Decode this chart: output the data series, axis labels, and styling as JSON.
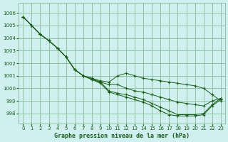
{
  "title": "Graphe pression niveau de la mer (hPa)",
  "bg_color": "#cff0ee",
  "grid_color": "#88bb99",
  "line_color": "#1a5e1a",
  "marker": "+",
  "x_ticks": [
    0,
    1,
    2,
    3,
    4,
    5,
    6,
    7,
    8,
    9,
    10,
    11,
    12,
    13,
    14,
    15,
    16,
    17,
    18,
    19,
    20,
    21,
    22,
    23
  ],
  "ylim": [
    997.2,
    1006.8
  ],
  "yticks": [
    998,
    999,
    1000,
    1001,
    1002,
    1003,
    1004,
    1005,
    1006
  ],
  "series": [
    [
      1005.7,
      1005.0,
      1004.3,
      1003.8,
      1003.2,
      1002.5,
      1001.5,
      1001.0,
      1000.8,
      1000.6,
      1000.5,
      1001.0,
      1001.2,
      1001.0,
      1000.8,
      1000.7,
      1000.6,
      1000.5,
      1000.4,
      1000.3,
      1000.2,
      1000.0,
      999.5,
      999.0
    ],
    [
      1005.7,
      1005.0,
      1004.3,
      1003.8,
      1003.2,
      1002.5,
      1001.5,
      1001.0,
      1000.8,
      1000.5,
      1000.3,
      1000.3,
      1000.0,
      999.8,
      999.7,
      999.5,
      999.3,
      999.1,
      998.9,
      998.8,
      998.7,
      998.6,
      999.0,
      999.2
    ],
    [
      1005.7,
      1005.0,
      1004.3,
      1003.8,
      1003.2,
      1002.5,
      1001.5,
      1001.0,
      1000.7,
      1000.5,
      999.8,
      999.6,
      999.5,
      999.3,
      999.1,
      998.8,
      998.5,
      998.2,
      997.9,
      997.9,
      997.9,
      998.0,
      998.7,
      999.2
    ],
    [
      1005.7,
      1005.0,
      1004.3,
      1003.8,
      1003.2,
      1002.5,
      1001.5,
      1001.0,
      1000.7,
      1000.4,
      999.7,
      999.5,
      999.3,
      999.1,
      998.9,
      998.6,
      998.2,
      997.9,
      997.8,
      997.8,
      997.8,
      997.9,
      998.6,
      999.1
    ]
  ]
}
